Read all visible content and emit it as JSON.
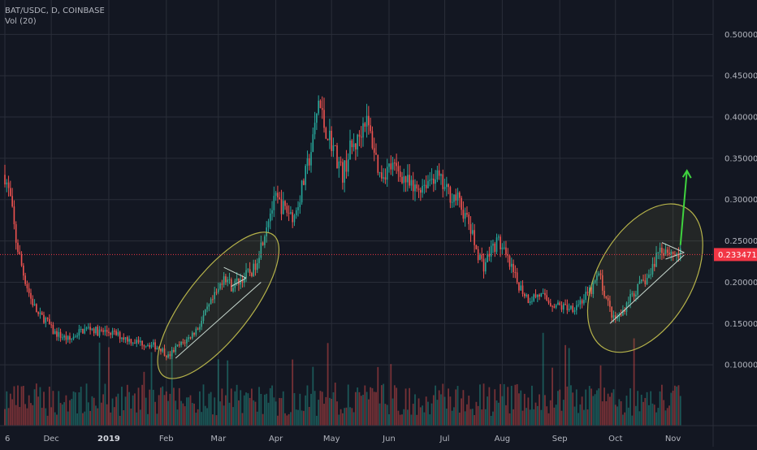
{
  "header": {
    "symbol_line": "BAT/USDC, D, COINBASE",
    "indicator_line": "Vol (20)"
  },
  "chart_data": {
    "type": "candlestick",
    "title": "BAT/USDC, D, COINBASE",
    "indicator": "Vol (20)",
    "ylim": [
      0.05,
      0.52
    ],
    "y_ticks": [
      0.1,
      0.15,
      0.2,
      0.25,
      0.3,
      0.35,
      0.4,
      0.45,
      0.5
    ],
    "y_tick_labels": [
      "0.100000",
      "0.150000",
      "0.200000",
      "0.250000",
      "0.300000",
      "0.350000",
      "0.400000",
      "0.450000",
      "0.500000"
    ],
    "x_tick_labels": [
      "6",
      "Dec",
      "2019",
      "Feb",
      "Mar",
      "Apr",
      "May",
      "Jun",
      "Jul",
      "Aug",
      "Sep",
      "Oct",
      "Nov"
    ],
    "x_tick_days": [
      0,
      25,
      56,
      87,
      115,
      146,
      176,
      207,
      237,
      268,
      299,
      329,
      360
    ],
    "last_price": 0.233471,
    "last_price_label": "0.233471",
    "grid": true,
    "colors": {
      "up": "#26a69a",
      "down": "#ef5350",
      "background": "#131722",
      "grid": "#2a2e39",
      "axis_text": "#b2b5be",
      "last_price_badge": "#f23645",
      "arrow": "#3fd23f",
      "ellipse": "#b5b24a"
    },
    "price_path": [
      [
        0,
        0.33
      ],
      [
        3,
        0.3
      ],
      [
        6,
        0.25
      ],
      [
        10,
        0.21
      ],
      [
        14,
        0.18
      ],
      [
        18,
        0.16
      ],
      [
        22,
        0.155
      ],
      [
        26,
        0.14
      ],
      [
        30,
        0.135
      ],
      [
        35,
        0.13
      ],
      [
        40,
        0.14
      ],
      [
        46,
        0.145
      ],
      [
        50,
        0.14
      ],
      [
        56,
        0.14
      ],
      [
        62,
        0.135
      ],
      [
        70,
        0.128
      ],
      [
        78,
        0.125
      ],
      [
        84,
        0.12
      ],
      [
        88,
        0.11
      ],
      [
        92,
        0.12
      ],
      [
        98,
        0.13
      ],
      [
        104,
        0.145
      ],
      [
        110,
        0.17
      ],
      [
        115,
        0.19
      ],
      [
        118,
        0.21
      ],
      [
        122,
        0.195
      ],
      [
        128,
        0.205
      ],
      [
        134,
        0.215
      ],
      [
        138,
        0.245
      ],
      [
        142,
        0.28
      ],
      [
        146,
        0.3
      ],
      [
        150,
        0.29
      ],
      [
        156,
        0.28
      ],
      [
        162,
        0.33
      ],
      [
        166,
        0.37
      ],
      [
        169,
        0.42
      ],
      [
        172,
        0.39
      ],
      [
        176,
        0.37
      ],
      [
        182,
        0.33
      ],
      [
        186,
        0.36
      ],
      [
        190,
        0.37
      ],
      [
        194,
        0.4
      ],
      [
        198,
        0.37
      ],
      [
        202,
        0.33
      ],
      [
        208,
        0.34
      ],
      [
        214,
        0.33
      ],
      [
        220,
        0.31
      ],
      [
        226,
        0.32
      ],
      [
        232,
        0.33
      ],
      [
        238,
        0.31
      ],
      [
        244,
        0.3
      ],
      [
        250,
        0.27
      ],
      [
        254,
        0.24
      ],
      [
        258,
        0.22
      ],
      [
        262,
        0.24
      ],
      [
        266,
        0.25
      ],
      [
        270,
        0.23
      ],
      [
        276,
        0.2
      ],
      [
        282,
        0.18
      ],
      [
        288,
        0.185
      ],
      [
        294,
        0.175
      ],
      [
        300,
        0.17
      ],
      [
        306,
        0.17
      ],
      [
        312,
        0.18
      ],
      [
        316,
        0.19
      ],
      [
        320,
        0.21
      ],
      [
        324,
        0.18
      ],
      [
        328,
        0.155
      ],
      [
        332,
        0.16
      ],
      [
        336,
        0.18
      ],
      [
        340,
        0.19
      ],
      [
        344,
        0.2
      ],
      [
        348,
        0.21
      ],
      [
        352,
        0.24
      ],
      [
        356,
        0.24
      ],
      [
        360,
        0.235
      ],
      [
        364,
        0.233
      ]
    ],
    "annotations": [
      {
        "type": "ellipse",
        "label": "",
        "region": "Feb–Mar consolidation"
      },
      {
        "type": "ellipse",
        "label": "",
        "region": "Oct consolidation"
      },
      {
        "type": "arrow",
        "label": "",
        "direction": "up"
      }
    ]
  }
}
